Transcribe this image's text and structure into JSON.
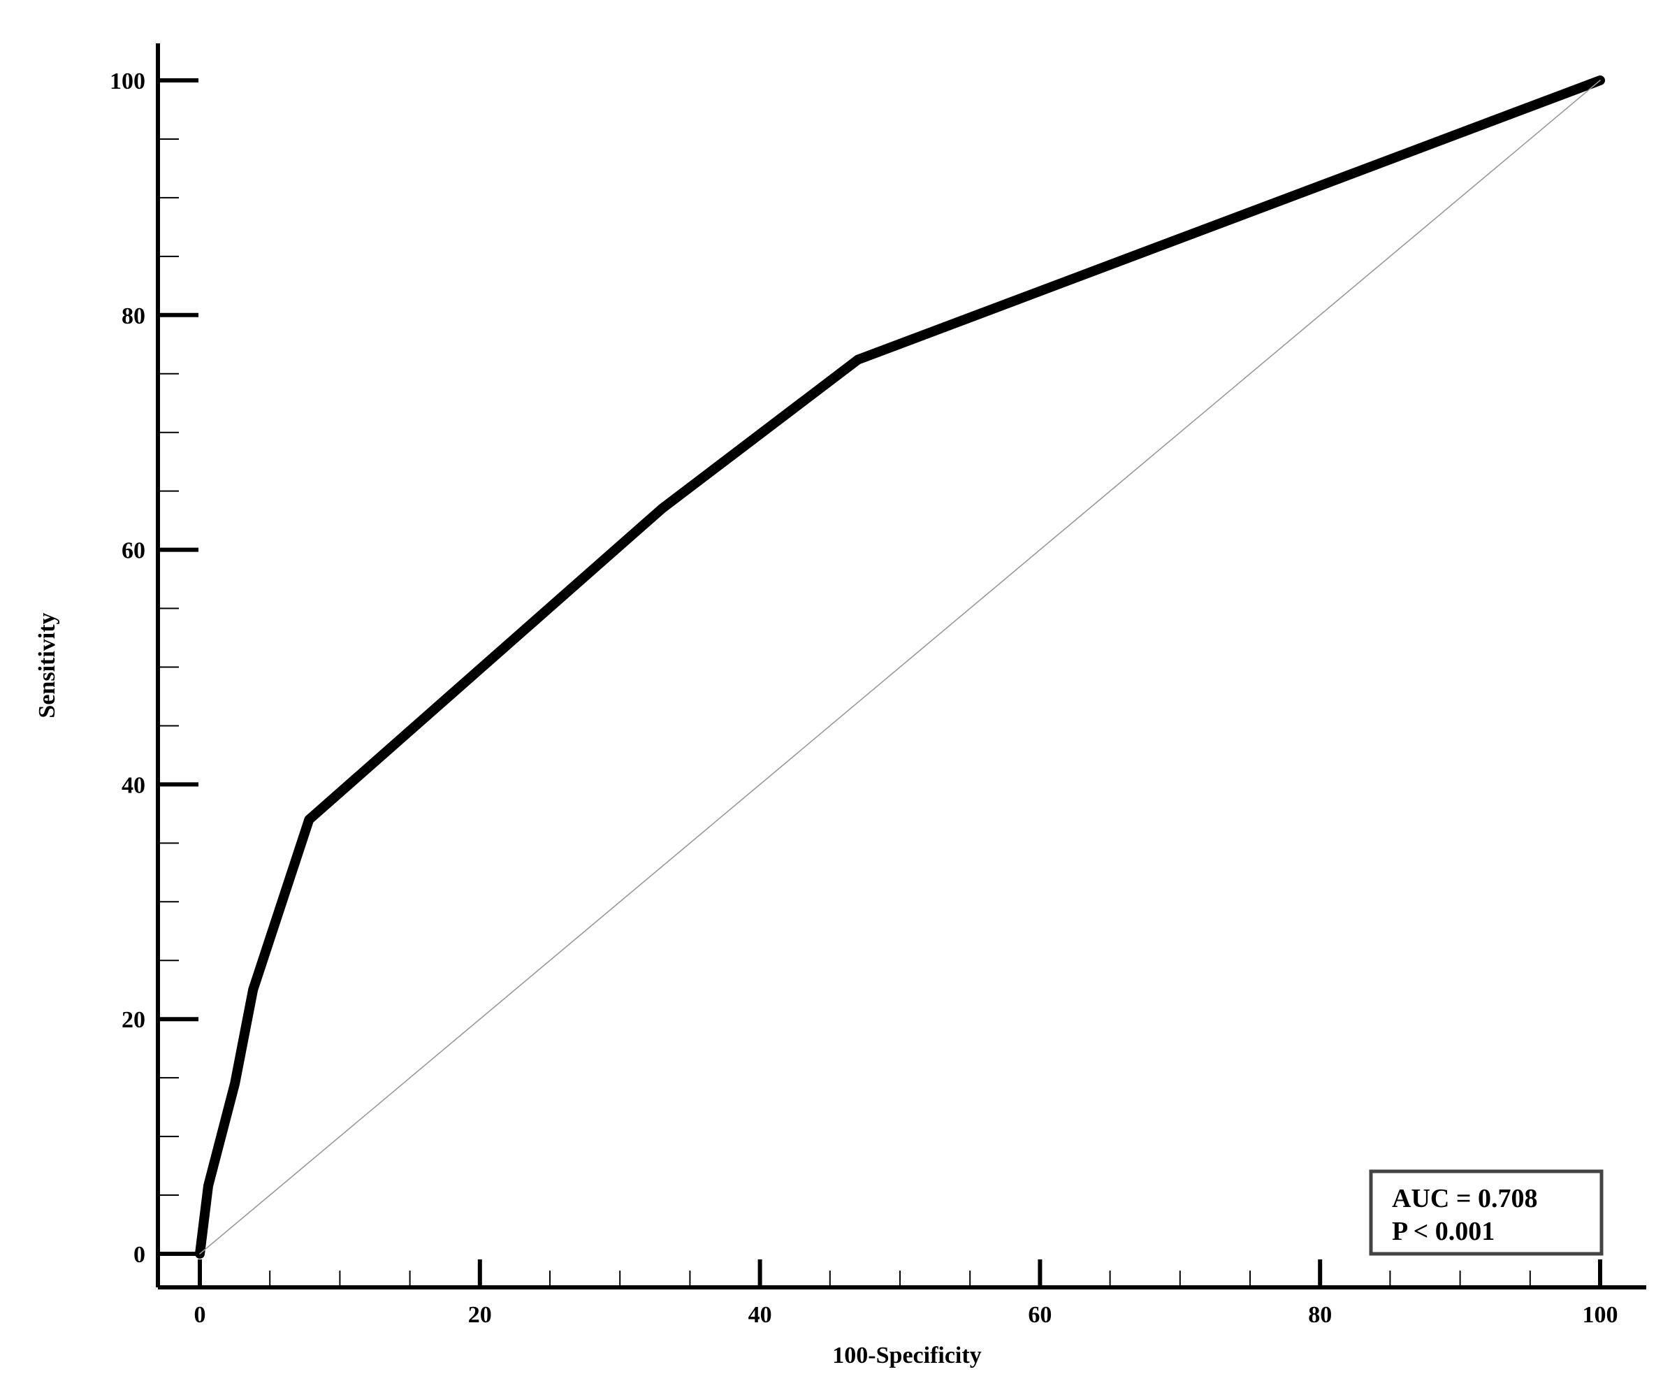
{
  "chart_data": {
    "type": "line",
    "title": "",
    "xlabel": "100-Specificity",
    "ylabel": "Sensitivity",
    "xlim": [
      0,
      100
    ],
    "ylim": [
      0,
      100
    ],
    "x_ticks": [
      0,
      20,
      40,
      60,
      80,
      100
    ],
    "y_ticks": [
      0,
      20,
      40,
      60,
      80,
      100
    ],
    "x_minor_step": 5,
    "y_minor_step": 5,
    "grid": false,
    "series": [
      {
        "role": "roc-curve",
        "color": "#000000",
        "x": [
          0,
          0.6,
          2.5,
          3.8,
          7.8,
          33,
          47,
          100
        ],
        "y": [
          0,
          5.8,
          14.5,
          22.5,
          37,
          63.5,
          76.2,
          100
        ]
      },
      {
        "role": "reference-diagonal",
        "color": "#999999",
        "x": [
          0,
          100
        ],
        "y": [
          0,
          100
        ]
      }
    ],
    "annotation": {
      "placement": "bottom-right",
      "lines": [
        "AUC = 0.708",
        "P < 0.001"
      ]
    }
  }
}
